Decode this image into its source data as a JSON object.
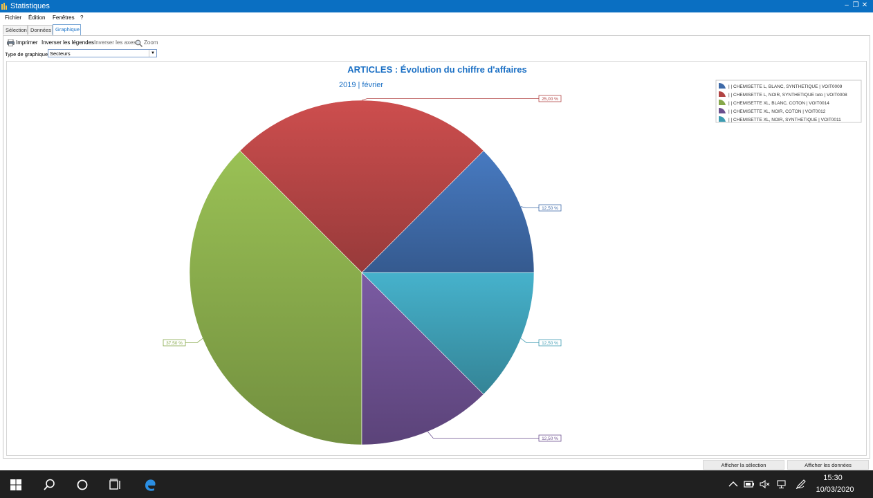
{
  "window": {
    "title": "Statistiques"
  },
  "menu": [
    "Fichier",
    "Édition",
    "Fenêtres",
    "?"
  ],
  "tabs": [
    {
      "label": "Sélection",
      "active": false
    },
    {
      "label": "Données",
      "active": false
    },
    {
      "label": "Graphique",
      "active": true
    }
  ],
  "toolbar": {
    "print": "Imprimer",
    "swap_legends": "Inverser les légendes",
    "swap_axes": "Inverser les axes",
    "zoom": "Zoom"
  },
  "chart_type": {
    "label": "Type de graphique",
    "value": "Secteurs"
  },
  "chart_data": {
    "type": "pie",
    "title": "ARTICLES : Évolution du chiffre d'affaires",
    "subtitle": "2019 | février",
    "legend_position": "top-right",
    "series": [
      {
        "name": "| | CHEMISETTE L, BLANC, SYNTHETIQUE | VOIT0009",
        "value": 12.5,
        "label": "12,50 %",
        "color": "#3e6aa8"
      },
      {
        "name": "| | CHEMISETTE L, NOIR, SYNTHETIQUE toto | VOIT0008",
        "value": 25.0,
        "label": "25,00 %",
        "color": "#b24444"
      },
      {
        "name": "| | CHEMISETTE XL, BLANC, COTON | VOIT0014",
        "value": 37.5,
        "label": "37,50 %",
        "color": "#86a84a"
      },
      {
        "name": "| | CHEMISETTE XL, NOIR, COTON | VOIT0012",
        "value": 12.5,
        "label": "12,50 %",
        "color": "#6b4f8e"
      },
      {
        "name": "| | CHEMISETTE XL, NOIR, SYNTHETIQUE | VOIT0011",
        "value": 12.5,
        "label": "12,50 %",
        "color": "#3d9bb1"
      }
    ]
  },
  "buttons": {
    "show_selection": "Afficher la sélection",
    "show_data": "Afficher les données"
  },
  "taskbar": {
    "time": "15:30",
    "date": "10/03/2020"
  }
}
